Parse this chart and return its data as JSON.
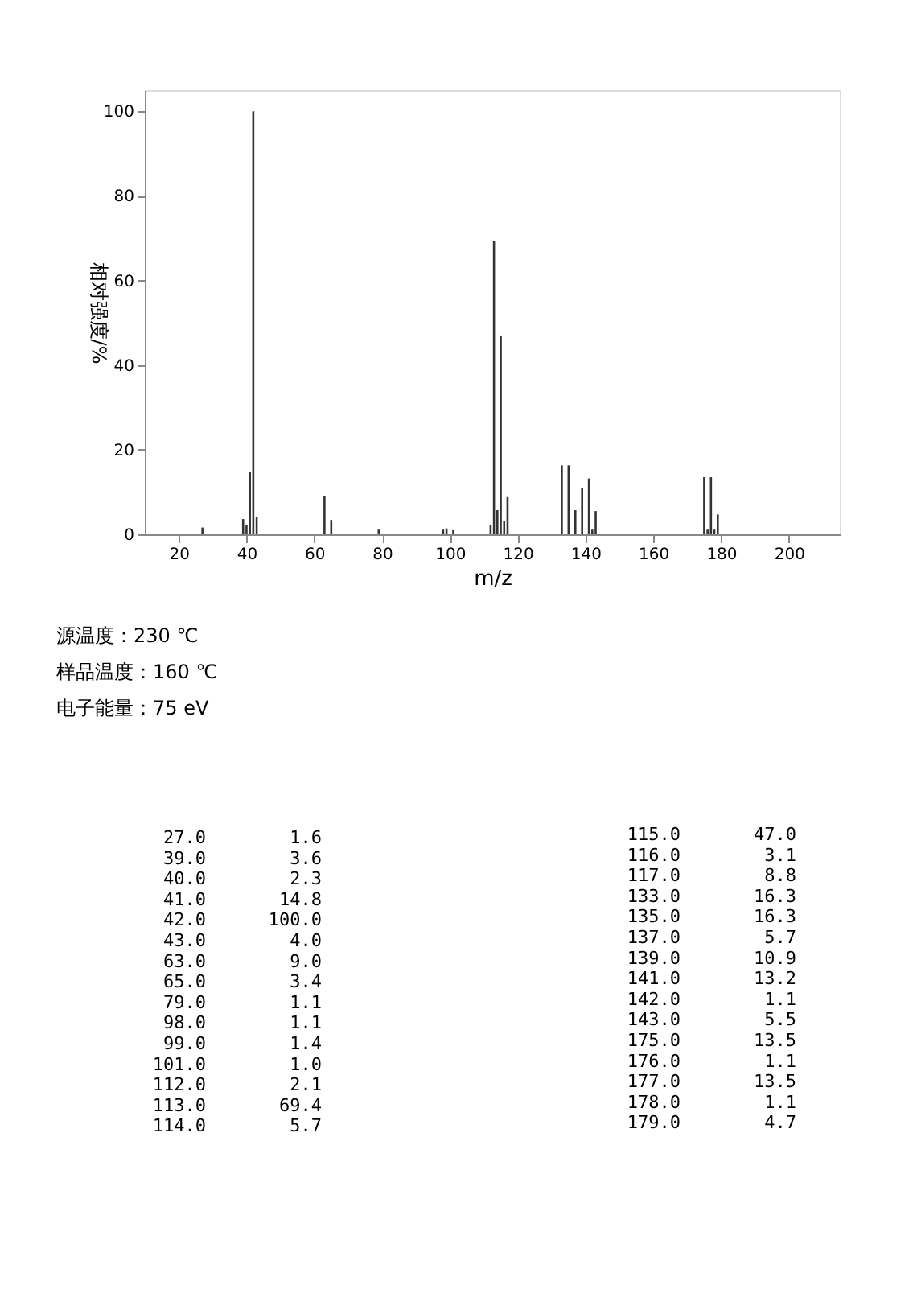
{
  "chart_data": [
    {
      "type": "bar",
      "xlabel": "m/z",
      "ylabel": "相对强度/%",
      "x": [
        27,
        39,
        40,
        41,
        42,
        43,
        63,
        65,
        79,
        98,
        99,
        101,
        112,
        113,
        114,
        115,
        116,
        117,
        133,
        135,
        137,
        139,
        141,
        142,
        143,
        175,
        176,
        177,
        178,
        179
      ],
      "values": [
        1.6,
        3.6,
        2.3,
        14.8,
        100.0,
        4.0,
        9.0,
        3.4,
        1.1,
        1.1,
        1.4,
        1.0,
        2.1,
        69.4,
        5.7,
        47.0,
        3.1,
        8.8,
        16.3,
        16.3,
        5.7,
        10.9,
        13.2,
        1.1,
        5.5,
        13.5,
        1.1,
        13.5,
        1.1,
        4.7
      ],
      "color": "#333333",
      "xlim": [
        10,
        215
      ],
      "xticks": [
        20,
        40,
        60,
        80,
        100,
        120,
        140,
        160,
        180,
        200
      ],
      "ylim": [
        0,
        105
      ],
      "yticks": [
        0,
        20,
        40,
        60,
        80,
        100
      ],
      "grid": false,
      "annotations": [
        "源温度：230 ℃",
        "样品温度：160 ℃",
        "电子能量：75 eV"
      ]
    },
    {
      "type": "other",
      "annotations": [
        "27.0",
        "1.6",
        "39.0",
        "3.6",
        "40.0",
        "2.3",
        "41.0",
        "14.8",
        "42.0",
        "100.0",
        "43.0",
        "4.0",
        "63.0",
        "9.0",
        "65.0",
        "3.4",
        "79.0",
        "1.1",
        "98.0",
        "1.1",
        "99.0",
        "1.4",
        "101.0",
        "1.0",
        "112.0",
        "2.1",
        "113.0",
        "69.4",
        "114.0",
        "5.7",
        "115.0",
        "47.0",
        "116.0",
        "3.1",
        "117.0",
        "8.8",
        "133.0",
        "16.3",
        "135.0",
        "16.3",
        "137.0",
        "5.7",
        "139.0",
        "10.9",
        "141.0",
        "13.2",
        "142.0",
        "1.1",
        "143.0",
        "5.5",
        "175.0",
        "13.5",
        "176.0",
        "1.1",
        "177.0",
        "13.5",
        "178.0",
        "1.1",
        "179.0",
        "4.7"
      ]
    }
  ]
}
